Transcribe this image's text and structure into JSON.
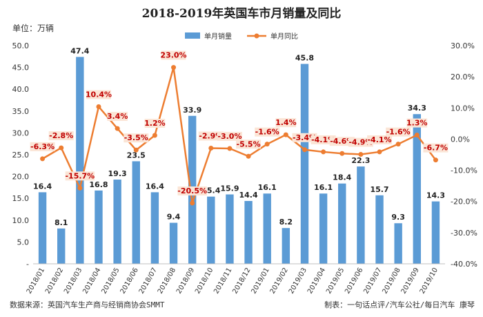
{
  "chart_data": {
    "type": "bar",
    "title": "2018-2019年英国车市月销量及同比",
    "unit_label": "单位：万辆",
    "categories": [
      "2018/01",
      "2018/02",
      "2018/03",
      "2018/04",
      "2018/05",
      "2018/06",
      "2018/07",
      "2018/08",
      "2018/09",
      "2018/10",
      "2018/11",
      "2018/12",
      "2019/01",
      "2019/02",
      "2019/03",
      "2019/04",
      "2019/05",
      "2019/06",
      "2019/07",
      "2019/08",
      "2019/09",
      "2019/10"
    ],
    "series": [
      {
        "name": "单月销量",
        "type": "bar",
        "axis": "left",
        "color": "#5b9bd5",
        "values": [
          16.4,
          8.1,
          47.4,
          16.8,
          19.3,
          23.5,
          16.4,
          9.4,
          33.9,
          15.4,
          15.9,
          14.4,
          16.1,
          8.2,
          45.8,
          16.1,
          18.4,
          22.3,
          15.7,
          9.3,
          34.3,
          14.3
        ],
        "labels": [
          "16.4",
          "8.1",
          "47.4",
          "16.8",
          "19.3",
          "23.5",
          "16.4",
          "9.4",
          "33.9",
          "15.4",
          "15.9",
          "14.4",
          "16.1",
          "8.2",
          "45.8",
          "16.1",
          "18.4",
          "22.3",
          "15.7",
          "9.3",
          "34.3",
          "14.3"
        ]
      },
      {
        "name": "单月同比",
        "type": "line",
        "axis": "right",
        "color": "#ed7d31",
        "values": [
          -6.3,
          -2.8,
          -15.7,
          10.4,
          3.4,
          -3.5,
          1.2,
          23.0,
          -20.5,
          -2.9,
          -3.0,
          -5.5,
          -1.6,
          1.4,
          -3.4,
          -4.1,
          -4.6,
          -4.9,
          -4.1,
          -1.6,
          1.3,
          -6.7
        ],
        "labels": [
          "-6.3%",
          "-2.8%",
          "-15.7%",
          "10.4%",
          "3.4%",
          "-3.5%",
          "1.2%",
          "23.0%",
          "-20.5%",
          "-2.9%",
          "-3.0%",
          "-5.5%",
          "-1.6%",
          "1.4%",
          "-3.4%",
          "-4.1%",
          "-4.6%",
          "-4.9%",
          "-4.1%",
          "-1.6%",
          "1.3%",
          "-6.7%"
        ]
      }
    ],
    "y_left": {
      "min": 0,
      "max": 50,
      "step": 5,
      "ticks": [
        "-",
        "5.0",
        "10.0",
        "15.0",
        "20.0",
        "25.0",
        "30.0",
        "35.0",
        "40.0",
        "45.0",
        "50.0"
      ]
    },
    "y_right": {
      "min": -40,
      "max": 30,
      "step": 10,
      "ticks": [
        "-40.0%",
        "-30.0%",
        "-20.0%",
        "-10.0%",
        "0.0%",
        "10.0%",
        "20.0%",
        "30.0%"
      ]
    },
    "legend_position": "top",
    "grid": false
  },
  "footer": {
    "source": "数据来源：英国汽车生产商与经销商协会SMMT",
    "credit": "制表：一句话点评/汽车公社/每日汽车 康琴"
  }
}
